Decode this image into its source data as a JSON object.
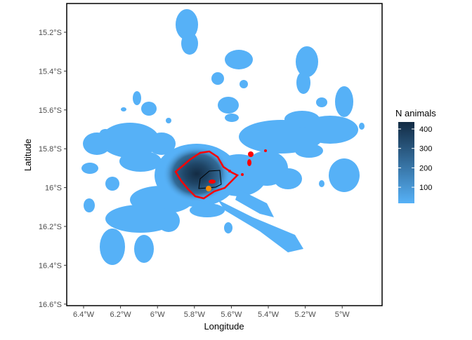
{
  "axes": {
    "xlabel": "Longitude",
    "ylabel": "Latitude",
    "x_ticks": [
      "6.4°W",
      "6.2°W",
      "6°W",
      "5.8°W",
      "5.6°W",
      "5.4°W",
      "5.2°W",
      "5°W"
    ],
    "y_ticks": [
      "15.2°S",
      "15.4°S",
      "15.6°S",
      "15.8°S",
      "16°S",
      "16.2°S",
      "16.4°S",
      "16.6°S"
    ]
  },
  "legend": {
    "title": "N animals",
    "ticks": [
      "400",
      "300",
      "200",
      "100"
    ],
    "color_low": "#56B1F7",
    "color_high": "#132B43"
  },
  "colors": {
    "density_fill": "#56B1F7",
    "contour_outer": "#FF0000",
    "contour_inner": "#000000",
    "point": "#FF8C00"
  }
}
